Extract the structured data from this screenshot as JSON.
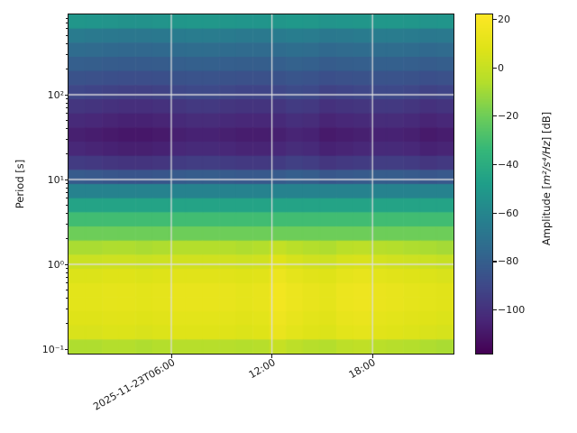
{
  "figure": {
    "kind": "seismic amplitude spectrogram",
    "background": "#ffffff"
  },
  "chart_data": {
    "type": "heatmap",
    "subtype": "spectrogram",
    "title": "",
    "xlabel": "",
    "ylabel": "Period [s]",
    "colorbar_label": "Amplitude [m²/s⁴/Hz] [dB]",
    "colorbar_label_parts": {
      "prefix": "Amplitude [",
      "math": "m²/s⁴/Hz",
      "suffix": "] [dB]"
    },
    "colormap": "viridis",
    "value_range_db": [
      -118,
      22
    ],
    "colorbar_ticks": [
      {
        "value": 20,
        "label": "20"
      },
      {
        "value": 0,
        "label": "0"
      },
      {
        "value": -20,
        "label": "−20"
      },
      {
        "value": -40,
        "label": "−40"
      },
      {
        "value": -60,
        "label": "−60"
      },
      {
        "value": -80,
        "label": "−80"
      },
      {
        "value": -100,
        "label": "−100"
      }
    ],
    "y_scale": "log",
    "y_range_s": [
      0.0885,
      885
    ],
    "y_ticks": [
      {
        "period_s": 100,
        "label": "10²"
      },
      {
        "period_s": 10,
        "label": "10¹"
      },
      {
        "period_s": 1,
        "label": "10⁰"
      },
      {
        "period_s": 0.1,
        "label": "10⁻¹"
      }
    ],
    "x_range_hours": [
      -0.13,
      22.83
    ],
    "x_ticks": [
      {
        "hour": 6,
        "label": "2025-11-23T06:00"
      },
      {
        "hour": 12,
        "label": "12:00"
      },
      {
        "hour": 18,
        "label": "18:00"
      }
    ],
    "grid": {
      "x_hours": [
        6,
        12,
        18
      ],
      "y_periods": [
        100,
        10,
        1
      ],
      "color": "#dedede"
    },
    "time_bin_hours": [
      0,
      1,
      2,
      3,
      4,
      5,
      6,
      7,
      8,
      9,
      10,
      11,
      12,
      13,
      14,
      15,
      16,
      17,
      18,
      19,
      20,
      21,
      22
    ],
    "period_bins_s": [
      753,
      513,
      349,
      238,
      162,
      110,
      75,
      51,
      35,
      24,
      16,
      11,
      7.5,
      5.1,
      3.5,
      2.4,
      1.6,
      1.09,
      0.74,
      0.51,
      0.34,
      0.23,
      0.16,
      0.11
    ],
    "base_db_by_period": [
      -52,
      -66,
      -74,
      -80,
      -86,
      -91,
      -98,
      -103,
      -107,
      -104,
      -96,
      -82,
      -62,
      -45,
      -31,
      -20,
      -7,
      2,
      8,
      11,
      11,
      9,
      7,
      -6
    ],
    "offsets_db": {
      "long_period_rows": [
        0,
        4
      ],
      "long_period_scale": 0.6,
      "microseism_band_rows": [
        5,
        11
      ],
      "microseism_hourly": [
        0,
        -1,
        -2,
        -3,
        -3,
        -2,
        0,
        1,
        1,
        0,
        -1,
        -1,
        0,
        2,
        1,
        -2,
        -1,
        0,
        1,
        1,
        0,
        -2,
        -1
      ],
      "short_period_rows": [
        16,
        23
      ],
      "short_period_hourly": [
        -1,
        -1,
        0,
        0,
        -1,
        0,
        1,
        1,
        1,
        1,
        0,
        1,
        6,
        3,
        1,
        0,
        3,
        4,
        2,
        1,
        0,
        -1,
        -2
      ]
    }
  }
}
